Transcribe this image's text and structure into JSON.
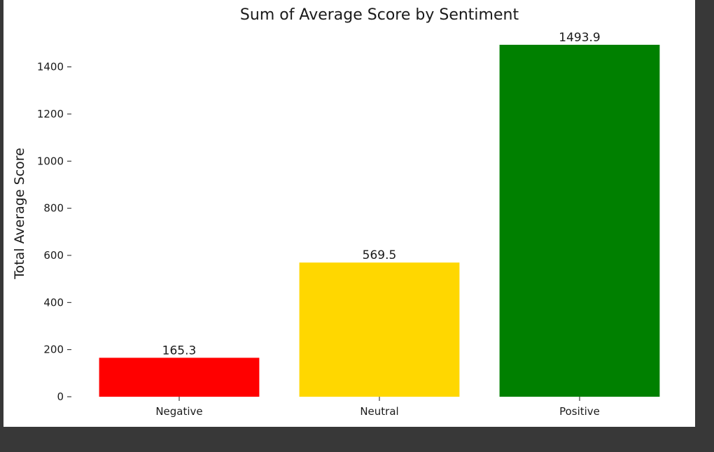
{
  "chart_data": {
    "type": "bar",
    "title": "Sum of Average Score by Sentiment",
    "xlabel": "",
    "ylabel": "Total Average Score",
    "categories": [
      "Negative",
      "Neutral",
      "Positive"
    ],
    "values": [
      165.3,
      569.5,
      1493.9
    ],
    "value_labels": [
      "165.3",
      "569.5",
      "1493.9"
    ],
    "colors": [
      "#ff0000",
      "#ffd700",
      "#008000"
    ],
    "yticks": [
      0,
      200,
      400,
      600,
      800,
      1000,
      1200,
      1400
    ],
    "ylim": [
      0,
      1493.9
    ],
    "grid": false,
    "legend": "none"
  }
}
